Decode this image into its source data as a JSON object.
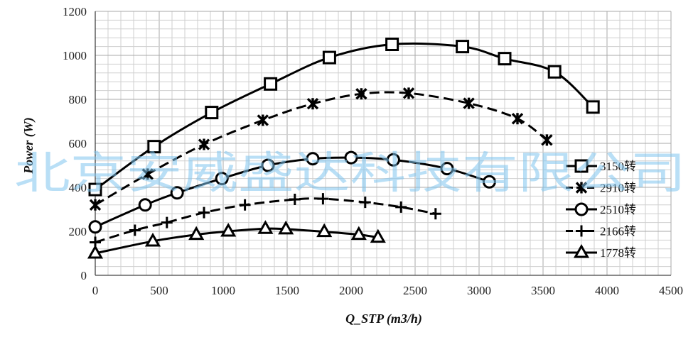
{
  "chart_data": {
    "type": "line",
    "title": "",
    "xlabel": "Q_STP (m3/h)",
    "ylabel": "Power (W)",
    "xlim": [
      0,
      4500
    ],
    "ylim": [
      0,
      1200
    ],
    "x_ticks": [
      "0",
      "500",
      "1000",
      "1500",
      "2000",
      "2500",
      "3000",
      "3500",
      "4000",
      "4500"
    ],
    "y_ticks": [
      "0",
      "200",
      "400",
      "600",
      "800",
      "1000",
      "1200"
    ],
    "grid": true,
    "legend_position": "right",
    "watermark": "北京安威盛达科技有限公司",
    "series": [
      {
        "name": "3150转",
        "marker": "square",
        "dash": "solid",
        "x": [
          0,
          460,
          910,
          1370,
          1830,
          2320,
          2870,
          3200,
          3590,
          3890
        ],
        "y": [
          390,
          585,
          740,
          870,
          990,
          1050,
          1040,
          985,
          925,
          765
        ]
      },
      {
        "name": "2910转",
        "marker": "x",
        "dash": "dashed",
        "x": [
          0,
          410,
          850,
          1310,
          1700,
          2080,
          2450,
          2920,
          3300,
          3530
        ],
        "y": [
          320,
          460,
          595,
          705,
          780,
          825,
          828,
          782,
          712,
          615
        ]
      },
      {
        "name": "2510转",
        "marker": "circle",
        "dash": "solid",
        "x": [
          0,
          390,
          640,
          990,
          1350,
          1700,
          2000,
          2330,
          2750,
          3080
        ],
        "y": [
          220,
          320,
          375,
          440,
          500,
          530,
          535,
          525,
          485,
          425
        ]
      },
      {
        "name": "2166转",
        "marker": "plus",
        "dash": "dashed",
        "x": [
          0,
          310,
          560,
          850,
          1170,
          1560,
          1780,
          2110,
          2390,
          2660
        ],
        "y": [
          150,
          205,
          240,
          285,
          320,
          345,
          348,
          332,
          310,
          280
        ]
      },
      {
        "name": "1778转",
        "marker": "triangle",
        "dash": "solid",
        "x": [
          0,
          450,
          790,
          1040,
          1330,
          1490,
          1790,
          2060,
          2210
        ],
        "y": [
          100,
          155,
          185,
          200,
          212,
          210,
          198,
          185,
          172
        ]
      }
    ]
  }
}
